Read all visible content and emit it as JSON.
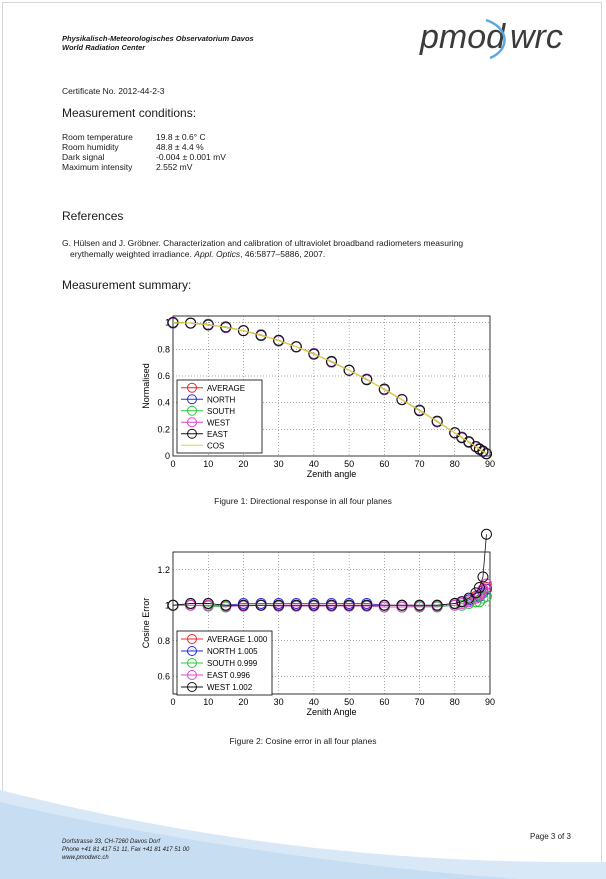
{
  "header": {
    "institution_line1": "Physikalisch-Meteorologisches Observatorium Davos",
    "institution_line2": "World Radiation Center",
    "logo_left": "pmod",
    "logo_right": "wrc"
  },
  "certificate": "Certificate No. 2012-44-2-3",
  "conditions": {
    "heading": "Measurement conditions:",
    "rows": [
      {
        "label": "Room temperature",
        "value": "19.8 ± 0.6° C"
      },
      {
        "label": "Room humidity",
        "value": "48.8 ± 4.4 %"
      },
      {
        "label": "Dark signal",
        "value": "-0.004 ± 0.001 mV"
      },
      {
        "label": "Maximum intensity",
        "value": "2.552 mV"
      }
    ]
  },
  "references": {
    "heading": "References",
    "authors": "G. Hülsen and J. Gröbner.",
    "title": "Characterization and calibration of ultraviolet broadband radiometers measuring",
    "title_cont": "erythemally weighted irradiance.",
    "journal": "Appl. Optics",
    "details": ", 46:5877–5886, 2007."
  },
  "summary": {
    "heading": "Measurement summary:"
  },
  "chart_data": [
    {
      "type": "line",
      "xlabel": "Zenith angle",
      "ylabel": "Normalised",
      "xlim": [
        0,
        90
      ],
      "ylim": [
        0,
        1.05
      ],
      "xticks": [
        0,
        10,
        20,
        30,
        40,
        50,
        60,
        70,
        80,
        90
      ],
      "yticks": [
        0,
        0.2,
        0.4,
        0.6,
        0.8,
        1
      ],
      "grid": true,
      "legend_position": "bottom-left",
      "x": [
        0,
        5,
        10,
        15,
        20,
        25,
        30,
        35,
        40,
        45,
        50,
        55,
        60,
        65,
        70,
        75,
        80,
        82,
        84,
        86,
        87,
        88,
        89
      ],
      "series": [
        {
          "name": "AVERAGE",
          "color": "#e8242c",
          "marker": "circle"
        },
        {
          "name": "NORTH",
          "color": "#2a2ae0",
          "marker": "circle"
        },
        {
          "name": "SOUTH",
          "color": "#28c83a",
          "marker": "circle"
        },
        {
          "name": "WEST",
          "color": "#e040d0",
          "marker": "circle"
        },
        {
          "name": "EAST",
          "color": "#111111",
          "marker": "circle"
        },
        {
          "name": "COS",
          "color": "#e8d43a",
          "marker": "none"
        }
      ],
      "values": [
        1.0,
        0.997,
        0.985,
        0.966,
        0.94,
        0.906,
        0.866,
        0.819,
        0.766,
        0.707,
        0.643,
        0.574,
        0.5,
        0.423,
        0.342,
        0.259,
        0.174,
        0.139,
        0.105,
        0.07,
        0.052,
        0.035,
        0.017
      ],
      "caption": "Figure 1: Directional response in all four planes"
    },
    {
      "type": "line",
      "xlabel": "Zenith Angle",
      "ylabel": "Cosine Error",
      "xlim": [
        0,
        90
      ],
      "ylim": [
        0.5,
        1.3
      ],
      "xticks": [
        0,
        10,
        20,
        30,
        40,
        50,
        60,
        70,
        80,
        90
      ],
      "yticks": [
        0.6,
        0.8,
        1,
        1.2
      ],
      "grid": true,
      "legend_position": "bottom-left",
      "x": [
        0,
        5,
        10,
        15,
        20,
        25,
        30,
        35,
        40,
        45,
        50,
        55,
        60,
        65,
        70,
        75,
        80,
        82,
        84,
        86,
        87,
        88,
        89
      ],
      "series": [
        {
          "name": "AVERAGE 1.000",
          "color": "#e8242c",
          "values": [
            1.0,
            1.0,
            1.0,
            0.995,
            1.0,
            1.0,
            1.0,
            1.0,
            1.0,
            1.0,
            1.0,
            1.0,
            1.0,
            1.0,
            1.0,
            1.0,
            1.01,
            1.02,
            1.03,
            1.05,
            1.06,
            1.08,
            1.1
          ]
        },
        {
          "name": "NORTH 1.005",
          "color": "#2a2ae0",
          "values": [
            1.0,
            1.01,
            1.01,
            1.0,
            1.01,
            1.01,
            1.01,
            1.01,
            1.01,
            1.01,
            1.01,
            1.01,
            1.0,
            1.0,
            1.0,
            1.0,
            1.01,
            1.02,
            1.03,
            1.04,
            1.05,
            1.07,
            1.09
          ]
        },
        {
          "name": "SOUTH 0.999",
          "color": "#28c83a",
          "values": [
            1.0,
            1.0,
            0.995,
            0.99,
            1.0,
            1.0,
            0.995,
            0.995,
            1.0,
            0.995,
            0.995,
            0.995,
            0.99,
            0.99,
            0.99,
            0.99,
            1.0,
            1.0,
            1.01,
            1.02,
            1.02,
            1.04,
            1.05
          ]
        },
        {
          "name": "EAST 0.996",
          "color": "#e040d0",
          "values": [
            1.0,
            1.0,
            1.0,
            0.995,
            0.995,
            1.0,
            0.995,
            0.995,
            0.995,
            0.995,
            0.995,
            0.995,
            0.99,
            0.99,
            0.995,
            0.995,
            1.0,
            1.01,
            1.02,
            1.04,
            1.06,
            1.09,
            1.12
          ]
        },
        {
          "name": "WEST 1.002",
          "color": "#111111",
          "values": [
            1.0,
            1.01,
            1.01,
            1.0,
            1.0,
            1.0,
            1.0,
            1.0,
            1.0,
            1.0,
            1.0,
            1.0,
            1.0,
            1.0,
            1.0,
            1.0,
            1.01,
            1.02,
            1.04,
            1.07,
            1.1,
            1.16,
            1.4
          ]
        }
      ],
      "caption": "Figure 2: Cosine error in all four planes"
    }
  ],
  "footer": {
    "address_line1": "Dorfstrasse 33, CH-7260 Davos Dorf",
    "address_line2": "Phone +41 81 417 51 11, Fax +41 81 417 51 00",
    "address_line3": "www.pmodwrc.ch",
    "page": "Page 3 of 3",
    "swoosh_color": "#cfe3f4"
  }
}
